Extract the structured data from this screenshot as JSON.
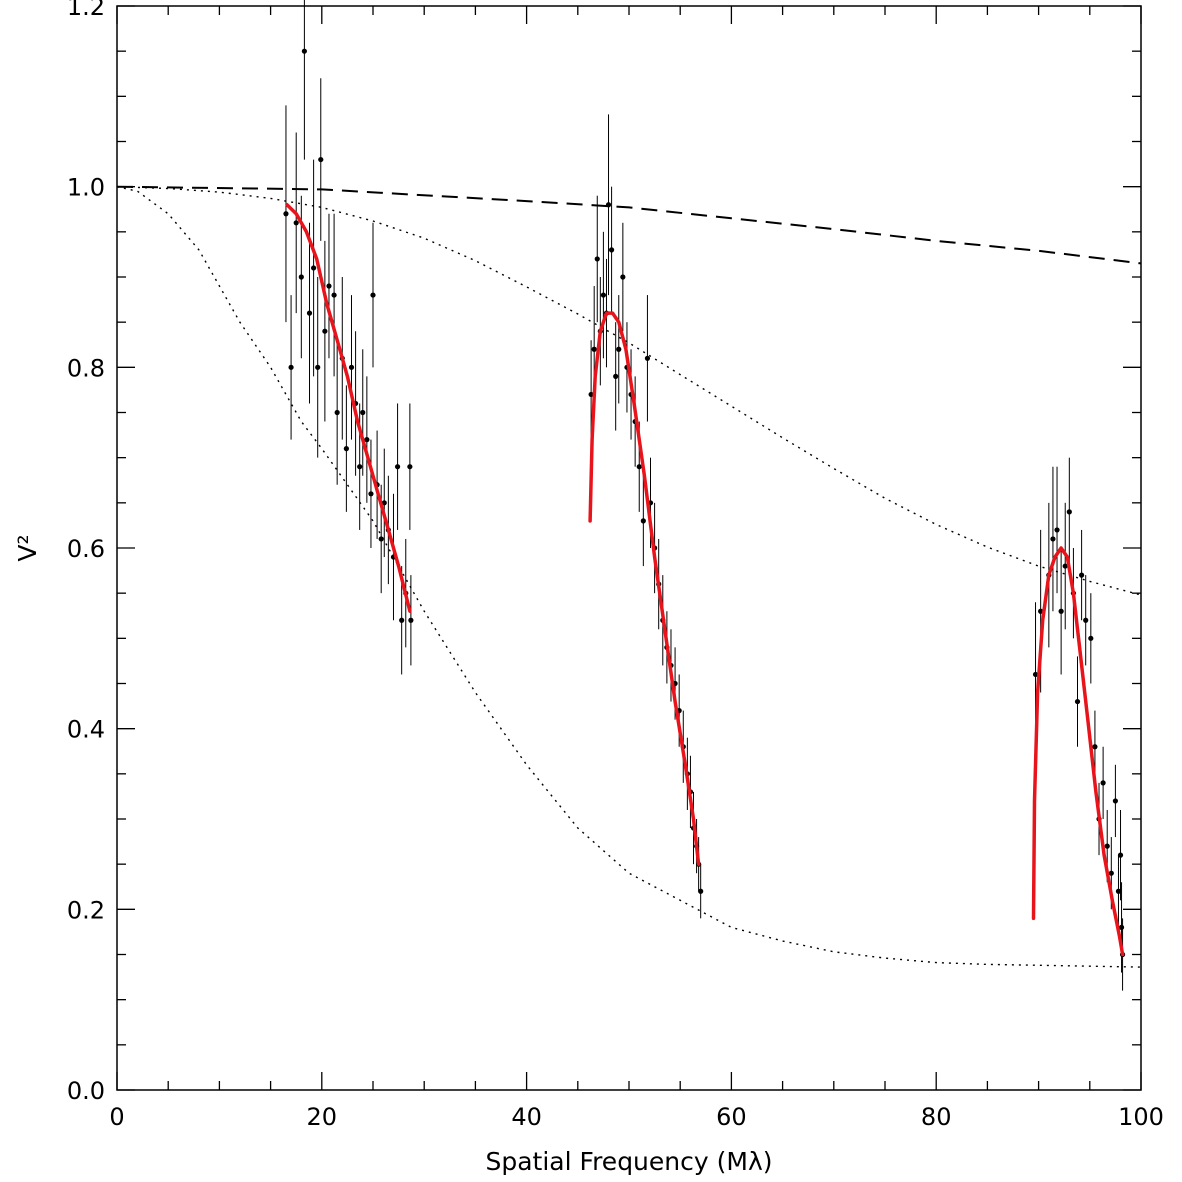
{
  "chart_data": {
    "type": "scatter",
    "title": "",
    "xlabel": "Spatial Frequency (Mλ)",
    "ylabel": "V²",
    "xlim": [
      0,
      100
    ],
    "ylim": [
      0,
      1.2
    ],
    "x_ticks": [
      "0",
      "20",
      "40",
      "60",
      "80",
      "100"
    ],
    "y_ticks": [
      "0.0",
      "0.2",
      "0.4",
      "0.6",
      "0.8",
      "1.0",
      "1.2"
    ],
    "grid": false,
    "legend": "none",
    "colors": {
      "data": "#000000",
      "fit": "#e8141c",
      "models": "#000000"
    },
    "series": [
      {
        "style": "points-with-error-bars",
        "points": [
          {
            "x": 16.5,
            "y": 0.97,
            "err": 0.12
          },
          {
            "x": 17.0,
            "y": 0.8,
            "err": 0.08
          },
          {
            "x": 17.5,
            "y": 0.96,
            "err": 0.1
          },
          {
            "x": 18.0,
            "y": 0.9,
            "err": 0.09
          },
          {
            "x": 18.3,
            "y": 1.15,
            "err": 0.12
          },
          {
            "x": 18.8,
            "y": 0.86,
            "err": 0.1
          },
          {
            "x": 19.2,
            "y": 0.91,
            "err": 0.12
          },
          {
            "x": 19.6,
            "y": 0.8,
            "err": 0.1
          },
          {
            "x": 19.9,
            "y": 1.03,
            "err": 0.09
          },
          {
            "x": 20.3,
            "y": 0.84,
            "err": 0.1
          },
          {
            "x": 20.7,
            "y": 0.89,
            "err": 0.08
          },
          {
            "x": 21.2,
            "y": 0.88,
            "err": 0.09
          },
          {
            "x": 21.5,
            "y": 0.75,
            "err": 0.08
          },
          {
            "x": 22.0,
            "y": 0.81,
            "err": 0.09
          },
          {
            "x": 22.4,
            "y": 0.71,
            "err": 0.07
          },
          {
            "x": 22.9,
            "y": 0.8,
            "err": 0.08
          },
          {
            "x": 23.3,
            "y": 0.76,
            "err": 0.08
          },
          {
            "x": 23.7,
            "y": 0.69,
            "err": 0.07
          },
          {
            "x": 24.0,
            "y": 0.75,
            "err": 0.07
          },
          {
            "x": 24.4,
            "y": 0.72,
            "err": 0.07
          },
          {
            "x": 24.8,
            "y": 0.66,
            "err": 0.06
          },
          {
            "x": 25.0,
            "y": 0.88,
            "err": 0.08
          },
          {
            "x": 25.4,
            "y": 0.67,
            "err": 0.06
          },
          {
            "x": 25.8,
            "y": 0.61,
            "err": 0.06
          },
          {
            "x": 26.1,
            "y": 0.65,
            "err": 0.06
          },
          {
            "x": 26.5,
            "y": 0.62,
            "err": 0.06
          },
          {
            "x": 27.0,
            "y": 0.59,
            "err": 0.07
          },
          {
            "x": 27.4,
            "y": 0.69,
            "err": 0.07
          },
          {
            "x": 27.8,
            "y": 0.52,
            "err": 0.06
          },
          {
            "x": 28.2,
            "y": 0.55,
            "err": 0.06
          },
          {
            "x": 28.6,
            "y": 0.69,
            "err": 0.07
          },
          {
            "x": 28.7,
            "y": 0.52,
            "err": 0.05
          },
          {
            "x": 46.3,
            "y": 0.77,
            "err": 0.06
          },
          {
            "x": 46.6,
            "y": 0.82,
            "err": 0.07
          },
          {
            "x": 46.9,
            "y": 0.92,
            "err": 0.07
          },
          {
            "x": 47.2,
            "y": 0.84,
            "err": 0.06
          },
          {
            "x": 47.5,
            "y": 0.88,
            "err": 0.07
          },
          {
            "x": 47.8,
            "y": 0.86,
            "err": 0.06
          },
          {
            "x": 48.0,
            "y": 0.98,
            "err": 0.1
          },
          {
            "x": 48.3,
            "y": 0.93,
            "err": 0.07
          },
          {
            "x": 48.7,
            "y": 0.79,
            "err": 0.06
          },
          {
            "x": 49.0,
            "y": 0.82,
            "err": 0.06
          },
          {
            "x": 49.4,
            "y": 0.9,
            "err": 0.06
          },
          {
            "x": 49.8,
            "y": 0.8,
            "err": 0.05
          },
          {
            "x": 50.2,
            "y": 0.77,
            "err": 0.05
          },
          {
            "x": 50.6,
            "y": 0.74,
            "err": 0.05
          },
          {
            "x": 51.0,
            "y": 0.69,
            "err": 0.05
          },
          {
            "x": 51.4,
            "y": 0.63,
            "err": 0.05
          },
          {
            "x": 51.8,
            "y": 0.81,
            "err": 0.07
          },
          {
            "x": 52.1,
            "y": 0.65,
            "err": 0.05
          },
          {
            "x": 52.5,
            "y": 0.6,
            "err": 0.05
          },
          {
            "x": 52.9,
            "y": 0.56,
            "err": 0.05
          },
          {
            "x": 53.3,
            "y": 0.52,
            "err": 0.05
          },
          {
            "x": 53.7,
            "y": 0.49,
            "err": 0.04
          },
          {
            "x": 54.1,
            "y": 0.47,
            "err": 0.04
          },
          {
            "x": 54.5,
            "y": 0.45,
            "err": 0.04
          },
          {
            "x": 54.9,
            "y": 0.42,
            "err": 0.04
          },
          {
            "x": 55.3,
            "y": 0.38,
            "err": 0.04
          },
          {
            "x": 55.7,
            "y": 0.35,
            "err": 0.04
          },
          {
            "x": 56.0,
            "y": 0.33,
            "err": 0.04
          },
          {
            "x": 56.3,
            "y": 0.29,
            "err": 0.04
          },
          {
            "x": 56.6,
            "y": 0.27,
            "err": 0.03
          },
          {
            "x": 56.8,
            "y": 0.25,
            "err": 0.03
          },
          {
            "x": 57.0,
            "y": 0.22,
            "err": 0.03
          },
          {
            "x": 89.7,
            "y": 0.46,
            "err": 0.08
          },
          {
            "x": 90.2,
            "y": 0.53,
            "err": 0.09
          },
          {
            "x": 91.0,
            "y": 0.57,
            "err": 0.08
          },
          {
            "x": 91.4,
            "y": 0.61,
            "err": 0.08
          },
          {
            "x": 91.8,
            "y": 0.62,
            "err": 0.07
          },
          {
            "x": 92.2,
            "y": 0.53,
            "err": 0.07
          },
          {
            "x": 92.6,
            "y": 0.58,
            "err": 0.07
          },
          {
            "x": 93.0,
            "y": 0.64,
            "err": 0.06
          },
          {
            "x": 93.4,
            "y": 0.55,
            "err": 0.05
          },
          {
            "x": 93.8,
            "y": 0.43,
            "err": 0.05
          },
          {
            "x": 94.2,
            "y": 0.57,
            "err": 0.05
          },
          {
            "x": 94.6,
            "y": 0.52,
            "err": 0.05
          },
          {
            "x": 95.1,
            "y": 0.5,
            "err": 0.05
          },
          {
            "x": 95.5,
            "y": 0.38,
            "err": 0.04
          },
          {
            "x": 95.9,
            "y": 0.3,
            "err": 0.04
          },
          {
            "x": 96.3,
            "y": 0.34,
            "err": 0.04
          },
          {
            "x": 96.7,
            "y": 0.27,
            "err": 0.04
          },
          {
            "x": 97.1,
            "y": 0.24,
            "err": 0.04
          },
          {
            "x": 97.5,
            "y": 0.32,
            "err": 0.04
          },
          {
            "x": 97.8,
            "y": 0.22,
            "err": 0.04
          },
          {
            "x": 98.0,
            "y": 0.26,
            "err": 0.05
          },
          {
            "x": 98.1,
            "y": 0.18,
            "err": 0.05
          },
          {
            "x": 98.2,
            "y": 0.15,
            "err": 0.04
          }
        ]
      },
      {
        "style": "fit-segments",
        "segments": [
          [
            [
              16.6,
              0.98
            ],
            [
              17.5,
              0.97
            ],
            [
              18.5,
              0.95
            ],
            [
              19.5,
              0.92
            ],
            [
              20.5,
              0.87
            ],
            [
              21.5,
              0.83
            ],
            [
              22.5,
              0.79
            ],
            [
              23.5,
              0.74
            ],
            [
              24.5,
              0.7
            ],
            [
              25.5,
              0.66
            ],
            [
              26.5,
              0.62
            ],
            [
              27.5,
              0.58
            ],
            [
              28.6,
              0.53
            ]
          ],
          [
            [
              46.2,
              0.63
            ],
            [
              46.4,
              0.72
            ],
            [
              46.7,
              0.79
            ],
            [
              47.2,
              0.84
            ],
            [
              47.8,
              0.86
            ],
            [
              48.4,
              0.86
            ],
            [
              49.0,
              0.85
            ],
            [
              49.7,
              0.82
            ],
            [
              50.5,
              0.76
            ],
            [
              51.5,
              0.68
            ],
            [
              52.5,
              0.59
            ],
            [
              53.5,
              0.51
            ],
            [
              54.5,
              0.43
            ],
            [
              55.5,
              0.36
            ],
            [
              56.3,
              0.3
            ],
            [
              56.8,
              0.25
            ]
          ],
          [
            [
              89.5,
              0.19
            ],
            [
              89.6,
              0.32
            ],
            [
              89.9,
              0.44
            ],
            [
              90.4,
              0.52
            ],
            [
              91.0,
              0.57
            ],
            [
              91.6,
              0.59
            ],
            [
              92.2,
              0.6
            ],
            [
              92.8,
              0.59
            ],
            [
              93.4,
              0.55
            ],
            [
              94.0,
              0.49
            ],
            [
              94.8,
              0.41
            ],
            [
              95.6,
              0.33
            ],
            [
              96.4,
              0.26
            ],
            [
              97.2,
              0.21
            ],
            [
              97.9,
              0.17
            ],
            [
              98.2,
              0.15
            ]
          ]
        ]
      },
      {
        "style": "dashed-model",
        "points": [
          [
            0,
            1.0
          ],
          [
            20,
            0.997
          ],
          [
            40,
            0.984
          ],
          [
            50,
            0.977
          ],
          [
            60,
            0.965
          ],
          [
            70,
            0.953
          ],
          [
            80,
            0.94
          ],
          [
            90,
            0.929
          ],
          [
            100,
            0.915
          ]
        ]
      },
      {
        "style": "dotted-model",
        "points": [
          [
            0,
            1.0
          ],
          [
            5,
            0.998
          ],
          [
            10,
            0.994
          ],
          [
            15,
            0.987
          ],
          [
            20,
            0.977
          ],
          [
            25,
            0.962
          ],
          [
            30,
            0.943
          ],
          [
            35,
            0.918
          ],
          [
            40,
            0.889
          ],
          [
            45,
            0.859
          ],
          [
            50,
            0.827
          ],
          [
            55,
            0.792
          ],
          [
            60,
            0.757
          ],
          [
            65,
            0.722
          ],
          [
            70,
            0.688
          ],
          [
            75,
            0.655
          ],
          [
            80,
            0.626
          ],
          [
            85,
            0.601
          ],
          [
            90,
            0.58
          ],
          [
            95,
            0.563
          ],
          [
            100,
            0.548
          ]
        ]
      },
      {
        "style": "dotted-model",
        "points": [
          [
            0,
            1.0
          ],
          [
            2,
            0.995
          ],
          [
            5,
            0.97
          ],
          [
            8,
            0.93
          ],
          [
            10,
            0.89
          ],
          [
            12,
            0.85
          ],
          [
            15,
            0.8
          ],
          [
            18,
            0.74
          ],
          [
            20,
            0.71
          ],
          [
            25,
            0.63
          ],
          [
            30,
            0.53
          ],
          [
            35,
            0.44
          ],
          [
            40,
            0.36
          ],
          [
            45,
            0.29
          ],
          [
            50,
            0.24
          ],
          [
            55,
            0.21
          ],
          [
            60,
            0.18
          ],
          [
            65,
            0.165
          ],
          [
            70,
            0.153
          ],
          [
            75,
            0.146
          ],
          [
            80,
            0.141
          ],
          [
            85,
            0.139
          ],
          [
            90,
            0.138
          ],
          [
            95,
            0.137
          ],
          [
            100,
            0.136
          ]
        ]
      }
    ]
  }
}
